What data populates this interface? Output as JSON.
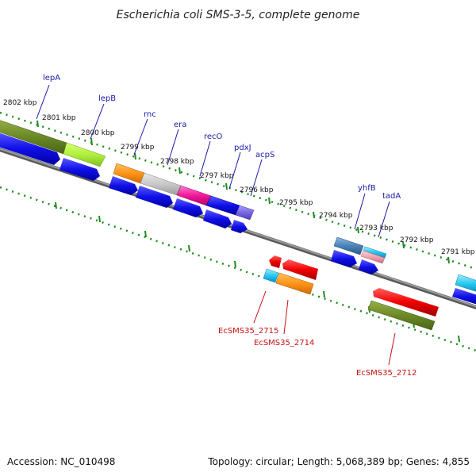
{
  "title": "Escherichia coli SMS-3-5, complete genome",
  "footer": {
    "accession": "Accession: NC_010498",
    "topology": "Topology: circular; Length: 5,068,389 bp; Genes: 4,855"
  },
  "kbp_labels": [
    "2802 kbp",
    "2801 kbp",
    "2800 kbp",
    "2799 kbp",
    "2798 kbp",
    "2797 kbp",
    "2796 kbp",
    "2795 kbp",
    "2794 kbp",
    "2793 kbp",
    "2792 kbp",
    "2791 kbp"
  ],
  "forward_gene_labels": [
    "lepA",
    "lepB",
    "rnc",
    "era",
    "recO",
    "pdxJ",
    "acpS",
    "yhfB",
    "tadA"
  ],
  "reverse_gene_labels": [
    "EcSMS35_2715",
    "EcSMS35_2714",
    "EcSMS35_2712"
  ],
  "colors": {
    "forward_label": "#1a1aa6",
    "reverse_label": "#c81010",
    "tick": "#1e8c1e",
    "backbone": "#808080",
    "cds_arrow": "#1010e0"
  }
}
